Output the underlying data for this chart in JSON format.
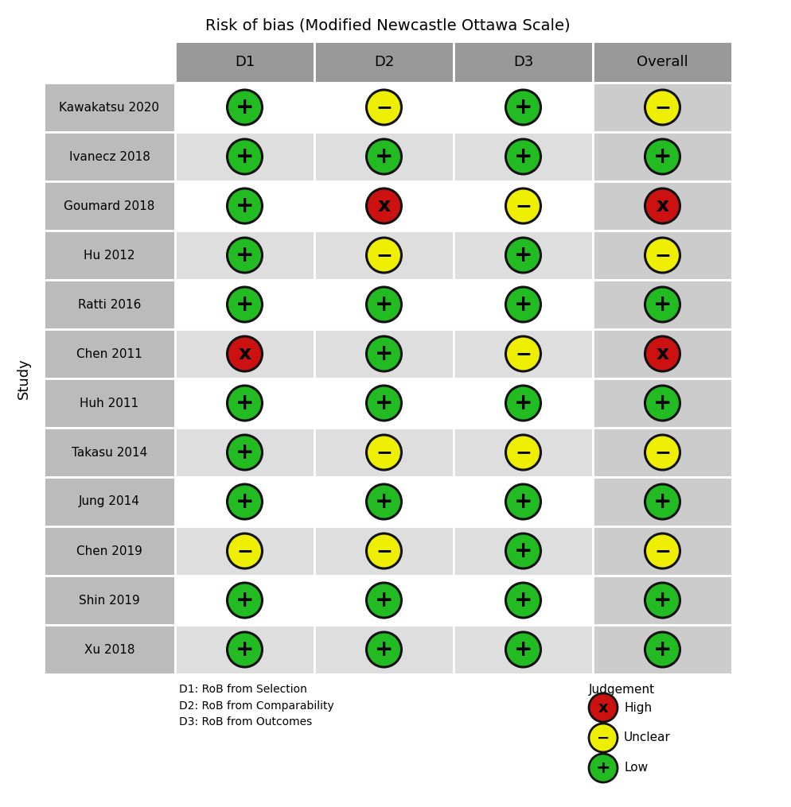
{
  "title": "Risk of bias (Modified Newcastle Ottawa Scale)",
  "columns": [
    "D1",
    "D2",
    "D3",
    "Overall"
  ],
  "studies": [
    "Kawakatsu 2020",
    "Ivanecz 2018",
    "Goumard 2018",
    "Hu 2012",
    "Ratti 2016",
    "Chen 2011",
    "Huh 2011",
    "Takasu 2014",
    "Jung 2014",
    "Chen 2019",
    "Shin 2019",
    "Xu 2018"
  ],
  "data": [
    [
      "green",
      "yellow",
      "green",
      "yellow"
    ],
    [
      "green",
      "green",
      "green",
      "green"
    ],
    [
      "green",
      "red",
      "yellow",
      "red"
    ],
    [
      "green",
      "yellow",
      "green",
      "yellow"
    ],
    [
      "green",
      "green",
      "green",
      "green"
    ],
    [
      "red",
      "green",
      "yellow",
      "red"
    ],
    [
      "green",
      "green",
      "green",
      "green"
    ],
    [
      "green",
      "yellow",
      "yellow",
      "yellow"
    ],
    [
      "green",
      "green",
      "green",
      "green"
    ],
    [
      "yellow",
      "yellow",
      "green",
      "yellow"
    ],
    [
      "green",
      "green",
      "green",
      "green"
    ],
    [
      "green",
      "green",
      "green",
      "green"
    ]
  ],
  "color_map": {
    "green": "#22bb22",
    "yellow": "#eeee00",
    "red": "#cc1111"
  },
  "symbol_map": {
    "green": "+",
    "yellow": "-",
    "red": "x"
  },
  "ylabel": "Study",
  "footnote_left": "D1: RoB from Selection\nD2: RoB from Comparability\nD3: RoB from Outcomes",
  "legend_title": "Judgement",
  "legend_items": [
    {
      "label": "High",
      "color": "#cc1111",
      "symbol": "x"
    },
    {
      "label": "Unclear",
      "color": "#eeee00",
      "symbol": "-"
    },
    {
      "label": "Low",
      "color": "#22bb22",
      "symbol": "+"
    }
  ],
  "header_bg": "#999999",
  "row_bg_white": "#ffffff",
  "row_bg_gray": "#dedede",
  "study_col_bg": "#bbbbbb",
  "overall_col_bg": "#cccccc",
  "fig_bg": "#ffffff",
  "title_fontsize": 14,
  "header_fontsize": 13,
  "study_fontsize": 11,
  "symbol_fontsize": 17,
  "footnote_fontsize": 10,
  "legend_fontsize": 11
}
